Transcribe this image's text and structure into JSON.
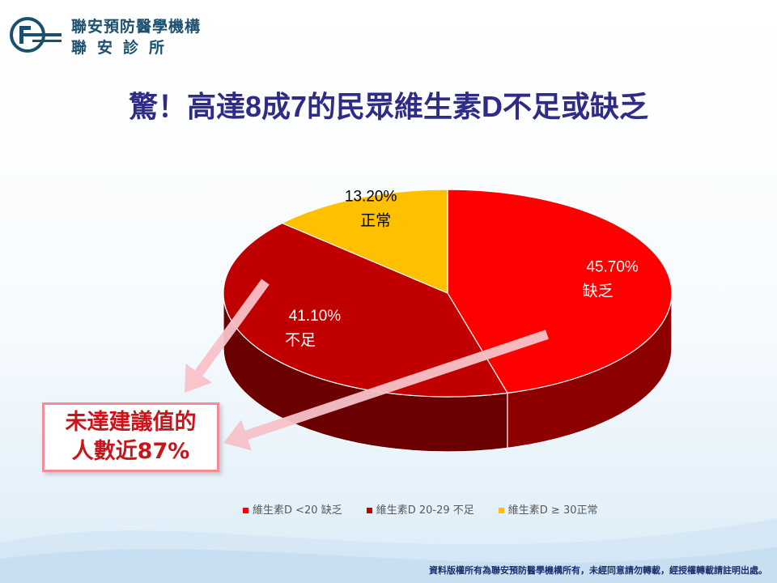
{
  "header": {
    "org_name": "聯安預防醫學機構",
    "clinic_name": "聯安診所"
  },
  "title": "驚！高達8成7的民眾維生素D不足或缺乏",
  "callout": {
    "line1": "未達建議值的",
    "line2": "人數近87%"
  },
  "chart_data": {
    "type": "pie",
    "style": "3d",
    "slices": [
      {
        "label": "缺乏",
        "value": 45.7,
        "value_label": "45.70%",
        "color": "#ff0000",
        "legend": "維生素D <20 缺乏"
      },
      {
        "label": "不足",
        "value": 41.1,
        "value_label": "41.10%",
        "color": "#c00000",
        "legend": "維生素D  20-29 不足"
      },
      {
        "label": "正常",
        "value": 13.2,
        "value_label": "13.20%",
        "color": "#ffc000",
        "legend": "維生素D  ≥ 30正常"
      }
    ],
    "legend_position": "bottom"
  },
  "footer": "資料版權所有為聯安預防醫學機構所有，未經同意請勿轉載，經授權轉載請註明出處。"
}
